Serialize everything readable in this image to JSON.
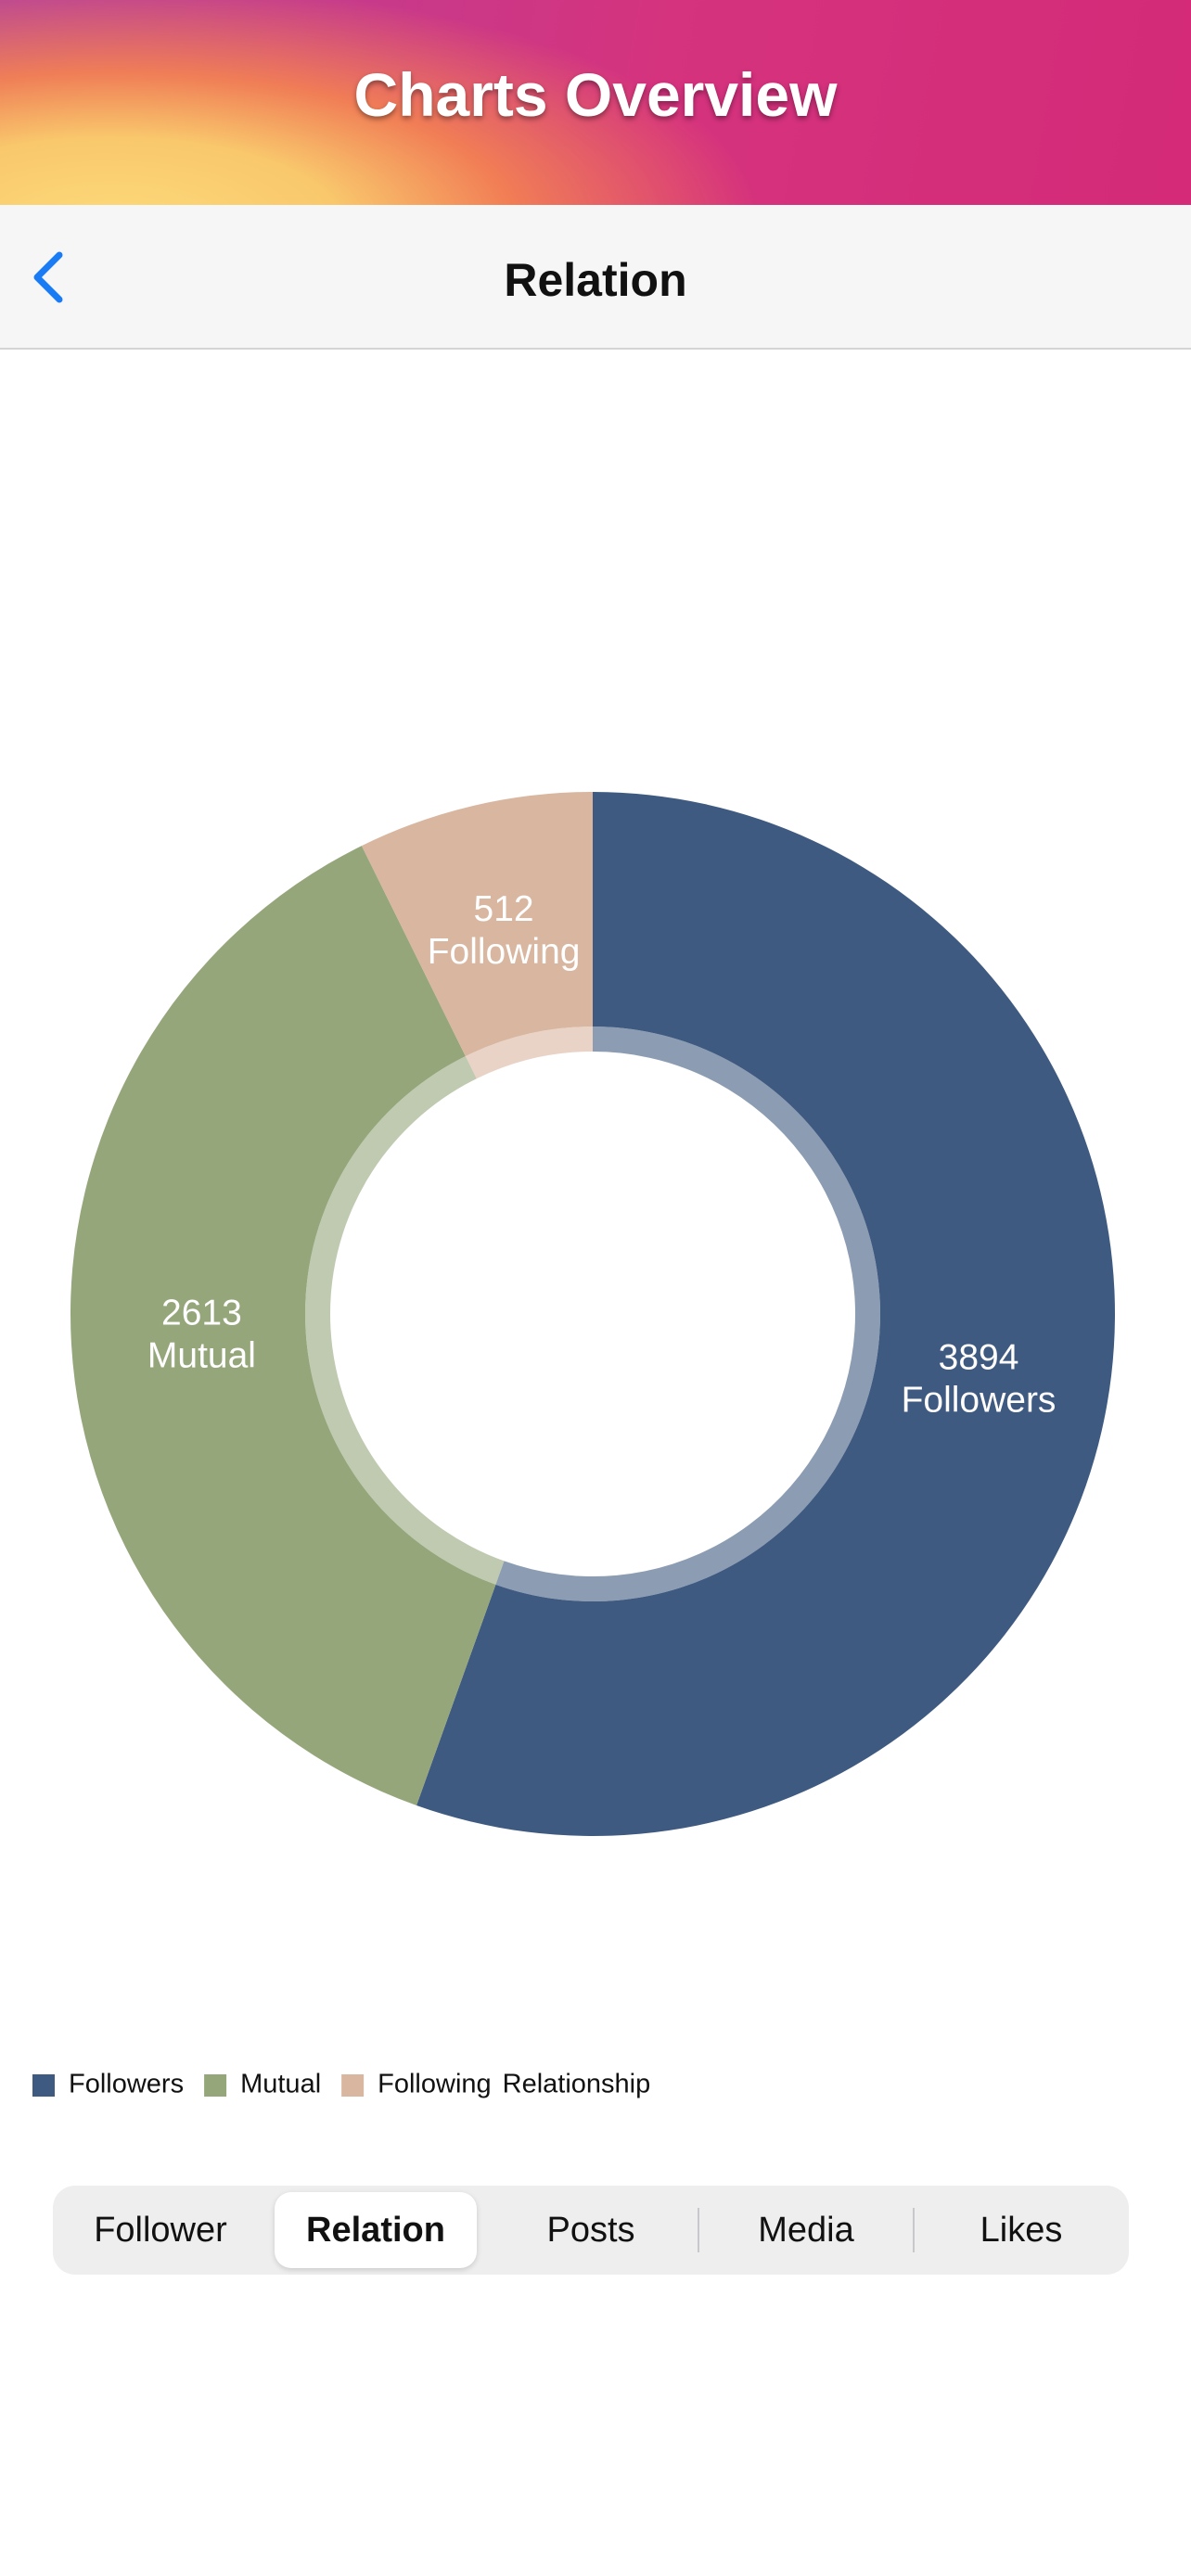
{
  "header": {
    "title": "Charts Overview"
  },
  "nav": {
    "title": "Relation"
  },
  "chart_data": {
    "type": "pie",
    "categories": [
      "Followers",
      "Mutual",
      "Following"
    ],
    "values": [
      3894,
      2613,
      512
    ],
    "colors": [
      "#3f5a80",
      "#95a67b",
      "#d8b6a0"
    ],
    "legend_title": "Relationship",
    "legend": "bottom-left"
  },
  "tabs": {
    "items": [
      "Follower",
      "Relation",
      "Posts",
      "Media",
      "Likes"
    ],
    "selected": 1
  }
}
